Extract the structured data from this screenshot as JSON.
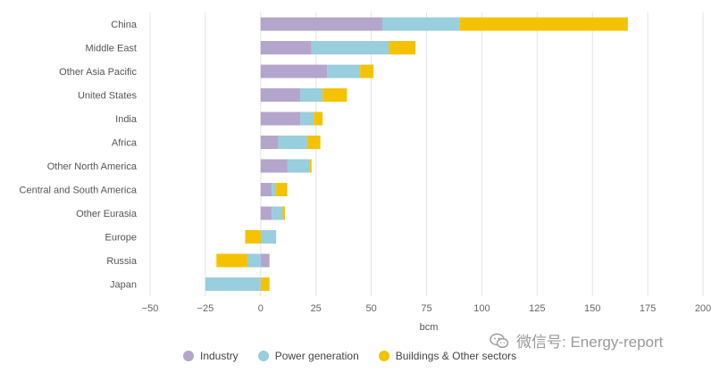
{
  "chart_data": {
    "type": "bar",
    "orientation": "horizontal",
    "stacked": true,
    "categories": [
      "China",
      "Middle East",
      "Other Asia Pacific",
      "United States",
      "India",
      "Africa",
      "Other North America",
      "Central and South America",
      "Other Eurasia",
      "Europe",
      "Russia",
      "Japan"
    ],
    "series": [
      {
        "name": "Industry",
        "color": "#b3a5cc",
        "values": [
          55,
          23,
          30,
          18,
          18,
          8,
          12,
          5,
          5,
          0,
          4,
          0
        ]
      },
      {
        "name": "Power generation",
        "color": "#98cedd",
        "values": [
          35,
          35,
          15,
          10,
          6,
          13,
          10,
          2,
          5,
          7,
          -6,
          -25
        ]
      },
      {
        "name": "Buildings & Other sectors",
        "color": "#f5c200",
        "values": [
          76,
          12,
          6,
          11,
          4,
          6,
          1,
          5,
          1,
          -7,
          -14,
          4
        ]
      }
    ],
    "xlabel": "bcm",
    "xlim": [
      -50,
      200
    ],
    "xticks": [
      -50,
      -25,
      0,
      25,
      50,
      75,
      100,
      125,
      150,
      175,
      200
    ],
    "xtick_labels": [
      "−50",
      "−25",
      "0",
      "25",
      "50",
      "75",
      "100",
      "125",
      "150",
      "175",
      "200"
    ],
    "grid": "vertical",
    "legend_position": "bottom"
  },
  "watermark": {
    "text": "微信号: Energy-report",
    "icon": "wechat-icon"
  }
}
